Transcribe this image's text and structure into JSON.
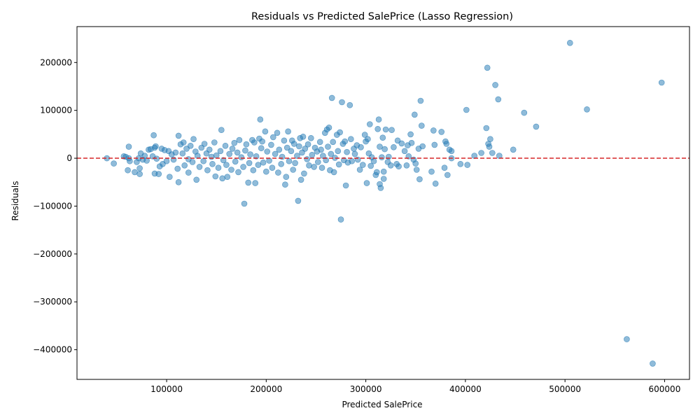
{
  "chart_data": {
    "type": "scatter",
    "title": "Residuals vs Predicted SalePrice (Lasso Regression)",
    "xlabel": "Predicted SalePrice",
    "ylabel": "Residuals",
    "xlim": [
      10000,
      625000
    ],
    "ylim": [
      -462000,
      275000
    ],
    "xticks": [
      100000,
      200000,
      300000,
      400000,
      500000,
      600000
    ],
    "xtick_labels": [
      "100000",
      "200000",
      "300000",
      "400000",
      "500000",
      "600000"
    ],
    "yticks": [
      -400000,
      -300000,
      -200000,
      -100000,
      0,
      100000,
      200000
    ],
    "ytick_labels": [
      "−400000",
      "−300000",
      "−200000",
      "−100000",
      "0",
      "100000",
      "200000"
    ],
    "grid": false,
    "reference_line": {
      "y": 0,
      "color": "#d62728",
      "style": "dashed"
    },
    "marker_color": "#1f77b4",
    "marker_alpha": 0.5,
    "points": [
      [
        40000,
        0
      ],
      [
        47000,
        -11000
      ],
      [
        57000,
        4000
      ],
      [
        59000,
        3000
      ],
      [
        61000,
        -25000
      ],
      [
        62000,
        24000
      ],
      [
        62000,
        0
      ],
      [
        63000,
        -6000
      ],
      [
        68000,
        -29000
      ],
      [
        70000,
        -8000
      ],
      [
        72000,
        0
      ],
      [
        73000,
        -33000
      ],
      [
        73000,
        -21000
      ],
      [
        74000,
        10000
      ],
      [
        76000,
        -3000
      ],
      [
        78000,
        5000
      ],
      [
        80000,
        -5000
      ],
      [
        82000,
        18000
      ],
      [
        84000,
        19000
      ],
      [
        86000,
        4000
      ],
      [
        87000,
        48000
      ],
      [
        88000,
        -32000
      ],
      [
        88000,
        22000
      ],
      [
        89000,
        25000
      ],
      [
        90000,
        -1000
      ],
      [
        92000,
        -33000
      ],
      [
        93000,
        -17000
      ],
      [
        95000,
        20000
      ],
      [
        96000,
        -12000
      ],
      [
        98000,
        17000
      ],
      [
        100000,
        -6000
      ],
      [
        102000,
        15000
      ],
      [
        103000,
        -39000
      ],
      [
        105000,
        8000
      ],
      [
        107000,
        -3000
      ],
      [
        109000,
        12000
      ],
      [
        111000,
        -22000
      ],
      [
        112000,
        47000
      ],
      [
        112000,
        -50000
      ],
      [
        114000,
        29000
      ],
      [
        116000,
        10000
      ],
      [
        117000,
        33000
      ],
      [
        118000,
        -15000
      ],
      [
        120000,
        20000
      ],
      [
        122000,
        -2000
      ],
      [
        122000,
        -30000
      ],
      [
        124000,
        26000
      ],
      [
        126000,
        -8000
      ],
      [
        127000,
        40000
      ],
      [
        129000,
        14000
      ],
      [
        130000,
        -45000
      ],
      [
        131000,
        5000
      ],
      [
        133000,
        -18000
      ],
      [
        135000,
        22000
      ],
      [
        137000,
        -6000
      ],
      [
        138000,
        30000
      ],
      [
        140000,
        10000
      ],
      [
        141000,
        -25000
      ],
      [
        143000,
        18000
      ],
      [
        145000,
        3000
      ],
      [
        146000,
        -12000
      ],
      [
        148000,
        33000
      ],
      [
        149000,
        -38000
      ],
      [
        150000,
        6000
      ],
      [
        152000,
        -20000
      ],
      [
        154000,
        15000
      ],
      [
        155000,
        59000
      ],
      [
        156000,
        -42000
      ],
      [
        157000,
        -4000
      ],
      [
        159000,
        26000
      ],
      [
        160000,
        -14000
      ],
      [
        161000,
        -39000
      ],
      [
        163000,
        9000
      ],
      [
        165000,
        -24000
      ],
      [
        166000,
        20000
      ],
      [
        168000,
        32000
      ],
      [
        169000,
        -7000
      ],
      [
        171000,
        12000
      ],
      [
        172000,
        -29000
      ],
      [
        173000,
        38000
      ],
      [
        175000,
        2000
      ],
      [
        177000,
        -18000
      ],
      [
        178000,
        -95000
      ],
      [
        179000,
        16000
      ],
      [
        180000,
        29000
      ],
      [
        182000,
        -51000
      ],
      [
        183000,
        -10000
      ],
      [
        184000,
        8000
      ],
      [
        186000,
        38000
      ],
      [
        187000,
        -25000
      ],
      [
        188000,
        33000
      ],
      [
        189000,
        -52000
      ],
      [
        190000,
        4000
      ],
      [
        192000,
        -14000
      ],
      [
        193000,
        41000
      ],
      [
        194000,
        81000
      ],
      [
        195000,
        21000
      ],
      [
        196000,
        35000
      ],
      [
        197000,
        -9000
      ],
      [
        199000,
        56000
      ],
      [
        200000,
        -28000
      ],
      [
        201000,
        14000
      ],
      [
        203000,
        -5000
      ],
      [
        205000,
        28000
      ],
      [
        206000,
        -20000
      ],
      [
        207000,
        44000
      ],
      [
        209000,
        9000
      ],
      [
        211000,
        53000
      ],
      [
        212000,
        -30000
      ],
      [
        213000,
        18000
      ],
      [
        215000,
        -12000
      ],
      [
        216000,
        3000
      ],
      [
        218000,
        37000
      ],
      [
        219000,
        -55000
      ],
      [
        220000,
        -39000
      ],
      [
        221000,
        22000
      ],
      [
        222000,
        56000
      ],
      [
        223000,
        -6000
      ],
      [
        225000,
        15000
      ],
      [
        226000,
        37000
      ],
      [
        227000,
        -24000
      ],
      [
        228000,
        30000
      ],
      [
        229000,
        -10000
      ],
      [
        231000,
        5000
      ],
      [
        232000,
        -89000
      ],
      [
        233000,
        25000
      ],
      [
        234000,
        42000
      ],
      [
        235000,
        -45000
      ],
      [
        236000,
        12000
      ],
      [
        237000,
        45000
      ],
      [
        238000,
        -32000
      ],
      [
        239000,
        20000
      ],
      [
        241000,
        -2000
      ],
      [
        242000,
        29000
      ],
      [
        243000,
        -15000
      ],
      [
        245000,
        42000
      ],
      [
        246000,
        7000
      ],
      [
        248000,
        -18000
      ],
      [
        249000,
        22000
      ],
      [
        251000,
        14000
      ],
      [
        252000,
        -8000
      ],
      [
        254000,
        34000
      ],
      [
        255000,
        18000
      ],
      [
        256000,
        -20000
      ],
      [
        257000,
        5000
      ],
      [
        259000,
        53000
      ],
      [
        260000,
        -4000
      ],
      [
        261000,
        60000
      ],
      [
        262000,
        24000
      ],
      [
        263000,
        64000
      ],
      [
        264000,
        -25000
      ],
      [
        265000,
        9000
      ],
      [
        266000,
        126000
      ],
      [
        267000,
        34000
      ],
      [
        268000,
        -29000
      ],
      [
        269000,
        1000
      ],
      [
        271000,
        49000
      ],
      [
        272000,
        15000
      ],
      [
        273000,
        -13000
      ],
      [
        274000,
        54000
      ],
      [
        275000,
        -128000
      ],
      [
        276000,
        117000
      ],
      [
        277000,
        30000
      ],
      [
        278000,
        -4000
      ],
      [
        279000,
        35000
      ],
      [
        280000,
        -57000
      ],
      [
        281000,
        13000
      ],
      [
        282000,
        -9000
      ],
      [
        284000,
        111000
      ],
      [
        285000,
        40000
      ],
      [
        286000,
        -6000
      ],
      [
        288000,
        20000
      ],
      [
        289000,
        9000
      ],
      [
        291000,
        27000
      ],
      [
        292000,
        -3000
      ],
      [
        294000,
        -24000
      ],
      [
        295000,
        23000
      ],
      [
        297000,
        -14000
      ],
      [
        299000,
        49000
      ],
      [
        300000,
        35000
      ],
      [
        301000,
        -52000
      ],
      [
        302000,
        40000
      ],
      [
        303000,
        10000
      ],
      [
        304000,
        71000
      ],
      [
        305000,
        -16000
      ],
      [
        306000,
        2000
      ],
      [
        308000,
        -6000
      ],
      [
        310000,
        -35000
      ],
      [
        311000,
        -29000
      ],
      [
        312000,
        61000
      ],
      [
        313000,
        81000
      ],
      [
        314000,
        -54000
      ],
      [
        314000,
        24000
      ],
      [
        315000,
        -62000
      ],
      [
        316000,
        2000
      ],
      [
        317000,
        43000
      ],
      [
        318000,
        -43000
      ],
      [
        318000,
        -28000
      ],
      [
        319000,
        19000
      ],
      [
        320000,
        60000
      ],
      [
        322000,
        -8000
      ],
      [
        323000,
        3000
      ],
      [
        325000,
        -15000
      ],
      [
        326000,
        59000
      ],
      [
        328000,
        23000
      ],
      [
        331000,
        -12000
      ],
      [
        332000,
        37000
      ],
      [
        333000,
        -17000
      ],
      [
        336000,
        31000
      ],
      [
        339000,
        15000
      ],
      [
        341000,
        -15000
      ],
      [
        342000,
        27000
      ],
      [
        343000,
        4000
      ],
      [
        345000,
        50000
      ],
      [
        346000,
        32000
      ],
      [
        348000,
        -3000
      ],
      [
        349000,
        91000
      ],
      [
        350000,
        -11000
      ],
      [
        351000,
        -24000
      ],
      [
        353000,
        20000
      ],
      [
        354000,
        -44000
      ],
      [
        355000,
        120000
      ],
      [
        356000,
        68000
      ],
      [
        357000,
        25000
      ],
      [
        366000,
        -28000
      ],
      [
        368000,
        58000
      ],
      [
        369000,
        28000
      ],
      [
        370000,
        -53000
      ],
      [
        376000,
        55000
      ],
      [
        379000,
        -20000
      ],
      [
        380000,
        35000
      ],
      [
        381000,
        30000
      ],
      [
        382000,
        -35000
      ],
      [
        384000,
        18000
      ],
      [
        386000,
        15000
      ],
      [
        386000,
        0
      ],
      [
        395000,
        -12000
      ],
      [
        401000,
        101000
      ],
      [
        402000,
        -14000
      ],
      [
        409000,
        5000
      ],
      [
        416000,
        11000
      ],
      [
        421000,
        63000
      ],
      [
        422000,
        189000
      ],
      [
        423000,
        30000
      ],
      [
        424000,
        24000
      ],
      [
        425000,
        40000
      ],
      [
        427000,
        11000
      ],
      [
        430000,
        153000
      ],
      [
        433000,
        123000
      ],
      [
        434000,
        5000
      ],
      [
        448000,
        18000
      ],
      [
        459000,
        95000
      ],
      [
        471000,
        66000
      ],
      [
        505000,
        241000
      ],
      [
        522000,
        102000
      ],
      [
        562000,
        -378000
      ],
      [
        588000,
        -429000
      ],
      [
        597000,
        158000
      ]
    ]
  }
}
